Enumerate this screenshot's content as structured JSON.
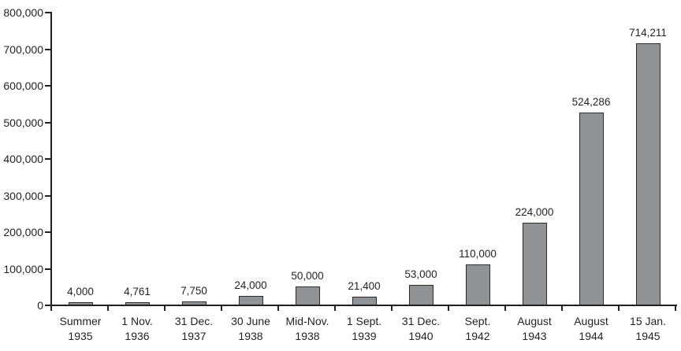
{
  "chart_data": {
    "type": "bar",
    "title": "",
    "xlabel": "",
    "ylabel": "",
    "grid": false,
    "legend": null,
    "ylim": [
      0,
      800000
    ],
    "y_ticks": [
      0,
      100000,
      200000,
      300000,
      400000,
      500000,
      600000,
      700000,
      800000
    ],
    "y_tick_labels": [
      "0",
      "100,000",
      "200,000",
      "300,000",
      "400,000",
      "500,000",
      "600,000",
      "700,000",
      "800,000"
    ],
    "categories": [
      {
        "line1": "Summer",
        "line2": "1935"
      },
      {
        "line1": "1 Nov.",
        "line2": "1936"
      },
      {
        "line1": "31 Dec.",
        "line2": "1937"
      },
      {
        "line1": "30 June",
        "line2": "1938"
      },
      {
        "line1": "Mid-Nov.",
        "line2": "1938"
      },
      {
        "line1": "1 Sept.",
        "line2": "1939"
      },
      {
        "line1": "31 Dec.",
        "line2": "1940"
      },
      {
        "line1": "Sept.",
        "line2": "1942"
      },
      {
        "line1": "August",
        "line2": "1943"
      },
      {
        "line1": "August",
        "line2": "1944"
      },
      {
        "line1": "15 Jan.",
        "line2": "1945"
      }
    ],
    "values": [
      4000,
      4761,
      7750,
      24000,
      50000,
      21400,
      53000,
      110000,
      224000,
      524286,
      714211
    ],
    "value_labels": [
      "4,000",
      "4,761",
      "7,750",
      "24,000",
      "50,000",
      "21,400",
      "53,000",
      "110,000",
      "224,000",
      "524,286",
      "714,211"
    ],
    "colors": {
      "bar_fill": "#8f9396",
      "bar_border": "#2d2b2c",
      "axis": "#231f20",
      "text": "#231f20",
      "background": "#ffffff"
    }
  }
}
